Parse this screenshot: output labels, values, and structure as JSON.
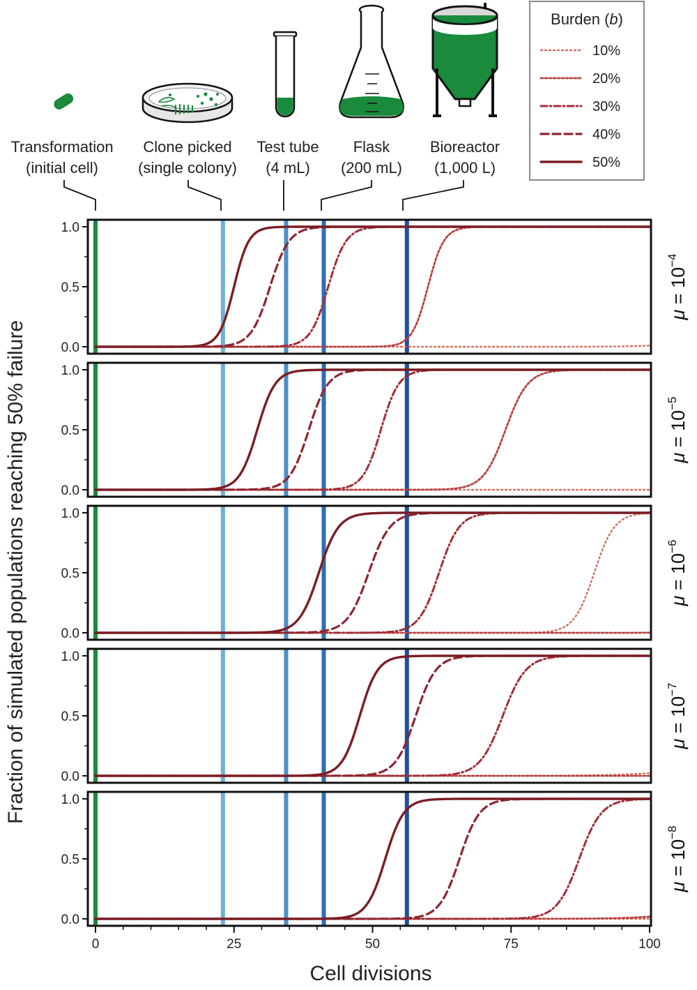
{
  "chart_data": {
    "type": "line",
    "xlabel": "Cell divisions",
    "ylabel": "Fraction of simulated populations reaching 50% failure",
    "xlim": [
      0,
      100
    ],
    "ylim": [
      0,
      1
    ],
    "x_ticks": [
      "0",
      "25",
      "50",
      "75",
      "100"
    ],
    "y_ticks": [
      "0.0",
      "0.5",
      "1.0"
    ],
    "legend": {
      "title_text": "Burden (",
      "title_var": "b",
      "title_close": ")",
      "position": "top-right",
      "entries": [
        "10%",
        "20%",
        "30%",
        "40%",
        "50%"
      ]
    },
    "stages": [
      {
        "line1": "Transformation",
        "line2": "(initial cell)",
        "x": 0,
        "color": "#1a8a3c",
        "icon": "bacterium-icon"
      },
      {
        "line1": "Clone picked",
        "line2": "(single colony)",
        "x": 23,
        "color": "#6fb0d8",
        "icon": "petri-dish-icon"
      },
      {
        "line1": "Test tube",
        "line2": "(4 mL)",
        "x": 34.4,
        "color": "#4a8fca",
        "icon": "test-tube-icon"
      },
      {
        "line1": "Flask",
        "line2": "(200 mL)",
        "x": 41.2,
        "color": "#2f6db5",
        "icon": "flask-icon"
      },
      {
        "line1": "Bioreactor",
        "line2": "(1,000 L)",
        "x": 56.2,
        "color": "#1f4f9c",
        "icon": "bioreactor-icon"
      }
    ],
    "series_styles": [
      {
        "name": "10%",
        "color": "#d96a5c",
        "dash": "2 4",
        "width": 2.4
      },
      {
        "name": "20%",
        "color": "#b8413f",
        "dash": "3 3",
        "width": 2.8
      },
      {
        "name": "30%",
        "color": "#a12e36",
        "dash": "9 4 2 4",
        "width": 3
      },
      {
        "name": "40%",
        "color": "#8f2530",
        "dash": "11 6",
        "width": 3.2
      },
      {
        "name": "50%",
        "color": "#7a1d24",
        "dash": "",
        "width": 3.4
      }
    ],
    "panels": [
      {
        "mu_base": "10",
        "mu_exp": "−4",
        "series": [
          {
            "name": "10%",
            "midpoint": 120,
            "steepness": 0.23
          },
          {
            "name": "20%",
            "midpoint": 60,
            "steepness": 0.7
          },
          {
            "name": "30%",
            "midpoint": 42,
            "steepness": 0.62
          },
          {
            "name": "40%",
            "midpoint": 31.5,
            "steepness": 0.58
          },
          {
            "name": "50%",
            "midpoint": 25,
            "steepness": 0.75
          }
        ]
      },
      {
        "mu_base": "10",
        "mu_exp": "−5",
        "series": [
          {
            "name": "10%",
            "midpoint": 135,
            "steepness": 0.3
          },
          {
            "name": "20%",
            "midpoint": 74,
            "steepness": 0.5
          },
          {
            "name": "30%",
            "midpoint": 51.5,
            "steepness": 0.62
          },
          {
            "name": "40%",
            "midpoint": 38.5,
            "steepness": 0.58
          },
          {
            "name": "50%",
            "midpoint": 29.2,
            "steepness": 0.62
          }
        ]
      },
      {
        "mu_base": "10",
        "mu_exp": "−6",
        "series": [
          {
            "name": "10%",
            "midpoint": 90,
            "steepness": 0.55
          },
          {
            "name": "20%",
            "midpoint": 125,
            "steepness": 0.3
          },
          {
            "name": "30%",
            "midpoint": 62,
            "steepness": 0.55
          },
          {
            "name": "40%",
            "midpoint": 49.3,
            "steepness": 0.52
          },
          {
            "name": "50%",
            "midpoint": 40.3,
            "steepness": 0.56
          }
        ]
      },
      {
        "mu_base": "10",
        "mu_exp": "−7",
        "series": [
          {
            "name": "10%",
            "midpoint": 125,
            "steepness": 0.15
          },
          {
            "name": "20%",
            "midpoint": 140,
            "steepness": 0.3
          },
          {
            "name": "30%",
            "midpoint": 73.5,
            "steepness": 0.48
          },
          {
            "name": "40%",
            "midpoint": 57.8,
            "steepness": 0.55
          },
          {
            "name": "50%",
            "midpoint": 47.7,
            "steepness": 0.62
          }
        ]
      },
      {
        "mu_base": "10",
        "mu_exp": "−8",
        "series": [
          {
            "name": "10%",
            "midpoint": 140,
            "steepness": 0.3
          },
          {
            "name": "20%",
            "midpoint": 120,
            "steepness": 0.2
          },
          {
            "name": "30%",
            "midpoint": 87.3,
            "steepness": 0.5
          },
          {
            "name": "40%",
            "midpoint": 65.7,
            "steepness": 0.55
          },
          {
            "name": "50%",
            "midpoint": 52.3,
            "steepness": 0.6
          }
        ]
      }
    ]
  }
}
